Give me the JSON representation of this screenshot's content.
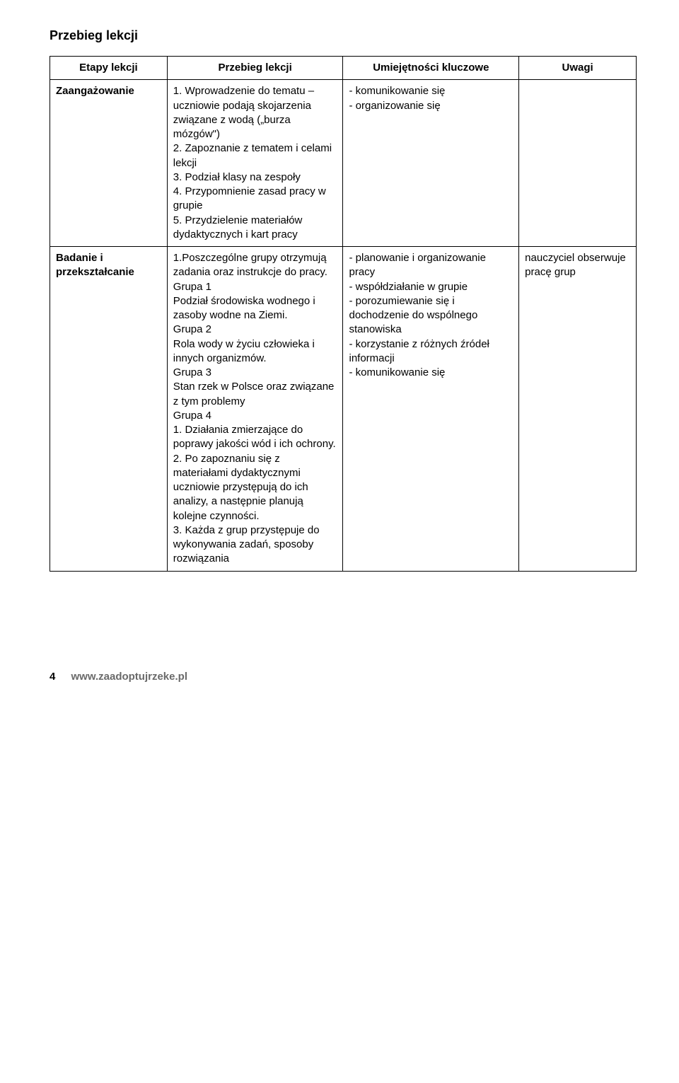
{
  "section_title": "Przebieg lekcji",
  "headers": {
    "col1": "Etapy lekcji",
    "col2": "Przebieg lekcji",
    "col3": "Umiejętności kluczowe",
    "col4": "Uwagi"
  },
  "rows": [
    {
      "stage": "Zaangażowanie",
      "przebieg": "1. Wprowadzenie do tematu – uczniowie podają skojarzenia związane z wodą („burza mózgów\")\n2. Zapoznanie z tematem i celami lekcji\n3. Podział klasy na zespoły\n4. Przypomnienie zasad pracy w grupie\n5. Przydzielenie materiałów dydaktycznych i kart pracy",
      "umiejetnosci": "- komunikowanie się\n- organizowanie się",
      "uwagi": ""
    },
    {
      "stage": "Badanie i przekształcanie",
      "przebieg": "1.Poszczególne grupy otrzymują zadania oraz instrukcje do pracy.\nGrupa 1\nPodział środowiska wodnego i zasoby wodne na Ziemi.\nGrupa 2\nRola wody w życiu człowieka i innych organizmów.\nGrupa 3\nStan rzek w Polsce oraz związane z tym problemy\nGrupa 4\n1. Działania zmierzające do poprawy jakości wód i ich ochrony.\n2. Po zapoznaniu się z materiałami dydaktycznymi uczniowie przystępują do ich analizy, a następnie planują kolejne czynności.\n3. Każda z grup przystępuje do wykonywania zadań, sposoby rozwiązania",
      "umiejetnosci": "- planowanie i organizowanie pracy\n- współdziałanie w grupie\n- porozumiewanie się i dochodzenie do wspólnego stanowiska\n- korzystanie z różnych źródeł informacji\n- komunikowanie się",
      "uwagi": "nauczyciel obserwuje pracę grup"
    }
  ],
  "footer": {
    "page_number": "4",
    "url": "www.zaadoptujrzeke.pl"
  }
}
